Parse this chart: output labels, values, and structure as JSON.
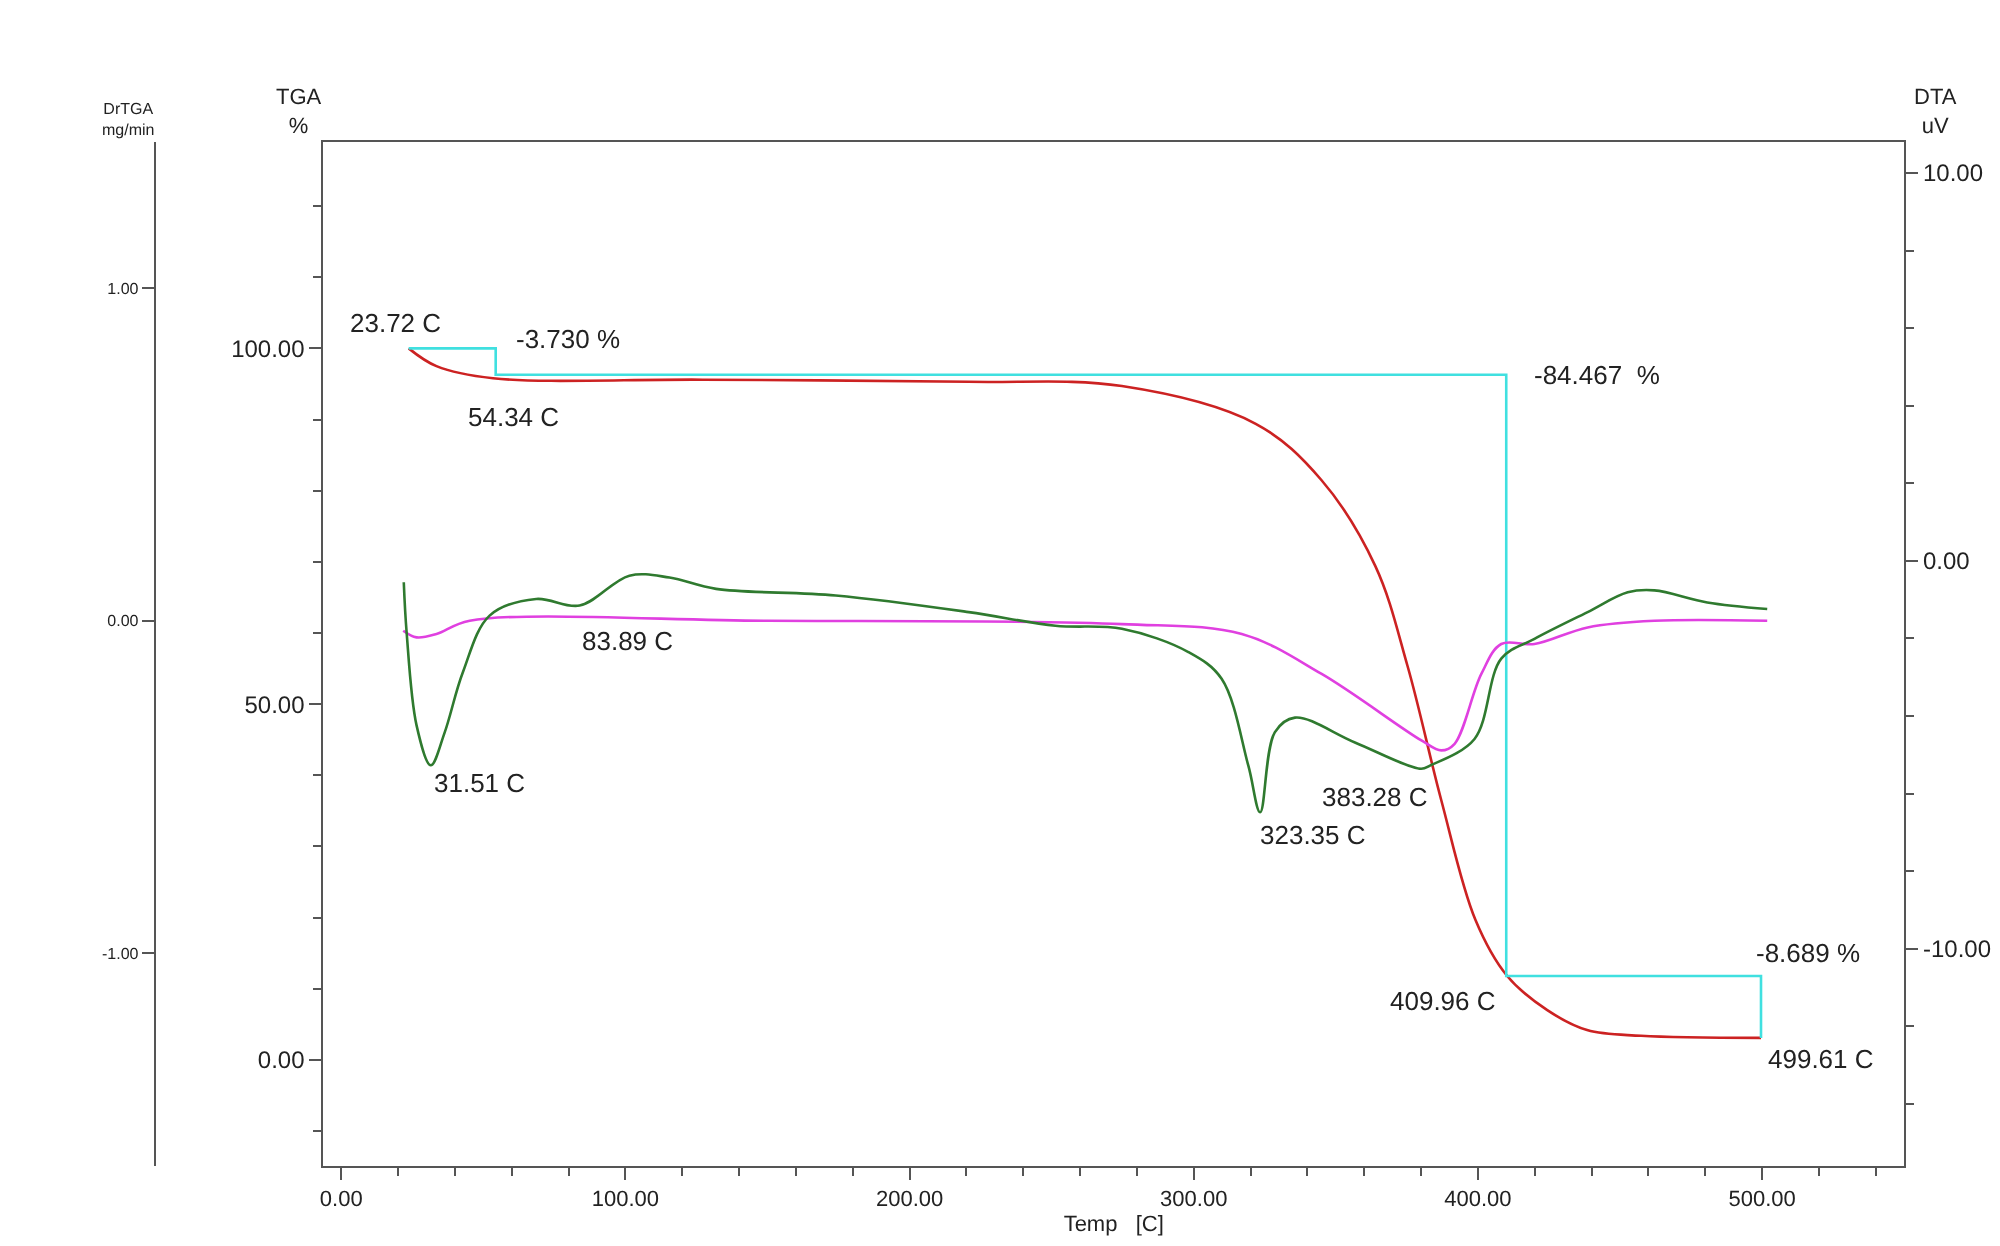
{
  "chart_data": {
    "type": "line",
    "xlabel": "Temp   [C]",
    "ylabel": "TGA\n%",
    "y2label": "DrTGA\nmg/min",
    "y3label": "DTA\nuV",
    "xlim": [
      -6.3,
      550
    ],
    "ylim": [
      -14.9,
      129
    ],
    "y2lim": [
      -1.64,
      1.44
    ],
    "y3lim": [
      -15.6,
      10.8
    ],
    "xticks": [
      {
        "value": 0,
        "label": "0.00"
      },
      {
        "value": 20,
        "label": null
      },
      {
        "value": 40,
        "label": null
      },
      {
        "value": 60,
        "label": null
      },
      {
        "value": 80,
        "label": null
      },
      {
        "value": 100,
        "label": "100.00"
      },
      {
        "value": 120,
        "label": null
      },
      {
        "value": 140,
        "label": null
      },
      {
        "value": 160,
        "label": null
      },
      {
        "value": 180,
        "label": null
      },
      {
        "value": 200,
        "label": "200.00"
      },
      {
        "value": 220,
        "label": null
      },
      {
        "value": 240,
        "label": null
      },
      {
        "value": 260,
        "label": null
      },
      {
        "value": 280,
        "label": null
      },
      {
        "value": 300,
        "label": "300.00"
      },
      {
        "value": 320,
        "label": null
      },
      {
        "value": 340,
        "label": null
      },
      {
        "value": 360,
        "label": null
      },
      {
        "value": 380,
        "label": null
      },
      {
        "value": 400,
        "label": "400.00"
      },
      {
        "value": 420,
        "label": null
      },
      {
        "value": 440,
        "label": null
      },
      {
        "value": 460,
        "label": null
      },
      {
        "value": 480,
        "label": null
      },
      {
        "value": 500,
        "label": "500.00"
      },
      {
        "value": 520,
        "label": null
      },
      {
        "value": 540,
        "label": null
      }
    ],
    "yticks": [
      {
        "value": -10,
        "label": null
      },
      {
        "value": 0,
        "label": "0.00"
      },
      {
        "value": 10,
        "label": null
      },
      {
        "value": 20,
        "label": null
      },
      {
        "value": 30,
        "label": null
      },
      {
        "value": 40,
        "label": null
      },
      {
        "value": 50,
        "label": "50.00"
      },
      {
        "value": 60,
        "label": null
      },
      {
        "value": 70,
        "label": null
      },
      {
        "value": 80,
        "label": null
      },
      {
        "value": 90,
        "label": null
      },
      {
        "value": 100,
        "label": "100.00"
      },
      {
        "value": 110,
        "label": null
      },
      {
        "value": 120,
        "label": null
      }
    ],
    "y2ticks": [
      {
        "value": -1.0,
        "label": "-1.00"
      },
      {
        "value": 0,
        "label": "0.00"
      },
      {
        "value": 1.0,
        "label": "1.00"
      }
    ],
    "y3ticks": [
      {
        "value": -14,
        "label": null
      },
      {
        "value": -12,
        "label": null
      },
      {
        "value": -10,
        "label": "-10.00"
      },
      {
        "value": -8,
        "label": null
      },
      {
        "value": -6,
        "label": null
      },
      {
        "value": -4,
        "label": null
      },
      {
        "value": -2,
        "label": null
      },
      {
        "value": 0,
        "label": "0.00"
      },
      {
        "value": 2,
        "label": null
      },
      {
        "value": 4,
        "label": null
      },
      {
        "value": 6,
        "label": null
      },
      {
        "value": 8,
        "label": null
      },
      {
        "value": 10,
        "label": "10.00"
      }
    ],
    "legend": false,
    "series": [
      {
        "color": "#cc2222",
        "x": [
          23.72,
          33.5,
          53.4,
          127.2,
          220.6,
          274.7,
          321.8,
          344.9,
          363.9,
          375.2,
          387.1,
          399.1,
          410.3,
          424.4,
          438.4,
          457.4,
          499.61
        ],
        "values": [
          100,
          97.5,
          95.8,
          95.6,
          95.3,
          94.7,
          89.4,
          81.5,
          69.4,
          55.4,
          36.5,
          19.7,
          11.8,
          7.0,
          4.2,
          3.4,
          3.1
        ]
      },
      {
        "color": "#40e0e0",
        "x": [
          23.72,
          54.34,
          54.34,
          409.96,
          409.96,
          499.61,
          499.61
        ],
        "values": [
          100,
          100,
          96.3,
          96.3,
          11.8,
          11.8,
          3.1
        ]
      },
      {
        "color": "#e040e0",
        "axis": "y2",
        "x": [
          21.8,
          26.5,
          33.5,
          45.2,
          150,
          274.7,
          316.9,
          345.0,
          380.1,
          387.1,
          391.8,
          401.2,
          408.2,
          419.9,
          438.6,
          462.1,
          501.8
        ],
        "values": [
          -0.03,
          -0.05,
          -0.04,
          0.0,
          0.0,
          -0.01,
          -0.04,
          -0.16,
          -0.36,
          -0.39,
          -0.37,
          -0.16,
          -0.07,
          -0.07,
          -0.02,
          0.0,
          0.0
        ]
      },
      {
        "color": "#2f7a2f",
        "axis": "y3",
        "x": [
          22.0,
          23.0,
          26.5,
          31.51,
          36.4,
          42.8,
          52.2,
          68.6,
          83.89,
          101.4,
          115.5,
          131.9,
          174.0,
          220.8,
          251.3,
          274.7,
          298.1,
          309.8,
          319.2,
          323.35,
          328.5,
          335.6,
          356.7,
          380.0,
          383.28,
          398.8,
          408.2,
          419.9,
          438.6,
          452.7,
          462.1,
          480.7,
          501.8
        ],
        "values": [
          -0.55,
          -1.84,
          -4.24,
          -5.27,
          -4.42,
          -2.87,
          -1.41,
          -0.98,
          -1.15,
          -0.38,
          -0.43,
          -0.72,
          -0.89,
          -1.32,
          -1.67,
          -1.75,
          -2.35,
          -3.04,
          -5.28,
          -6.48,
          -4.42,
          -4.04,
          -4.68,
          -5.36,
          -5.27,
          -4.59,
          -2.52,
          -2.01,
          -1.32,
          -0.81,
          -0.76,
          -1.07,
          -1.24
        ]
      }
    ],
    "annotations": [
      {
        "text": "23.72 C",
        "x": 23.72,
        "y": 100
      },
      {
        "text": "-3.730 %",
        "x": 54.34,
        "y": 100
      },
      {
        "text": "54.34 C",
        "x": 54.34,
        "y": 96.27
      },
      {
        "text": "-84.467  %",
        "x": 409.96,
        "y": 96.27
      },
      {
        "text": "83.89 C",
        "x": 83.89,
        "y": 63.8
      },
      {
        "text": "31.51 C",
        "x": 31.51,
        "y": 41.3
      },
      {
        "text": "323.35 C",
        "x": 323.35,
        "y": 34.6
      },
      {
        "text": "383.28 C",
        "x": 383.28,
        "y": 40.8
      },
      {
        "text": "409.96 C",
        "x": 409.96,
        "y": 11.8
      },
      {
        "text": "-8.689 %",
        "x": 499.61,
        "y": 11.8
      },
      {
        "text": "499.61 C",
        "x": 499.61,
        "y": 3.11
      }
    ]
  }
}
